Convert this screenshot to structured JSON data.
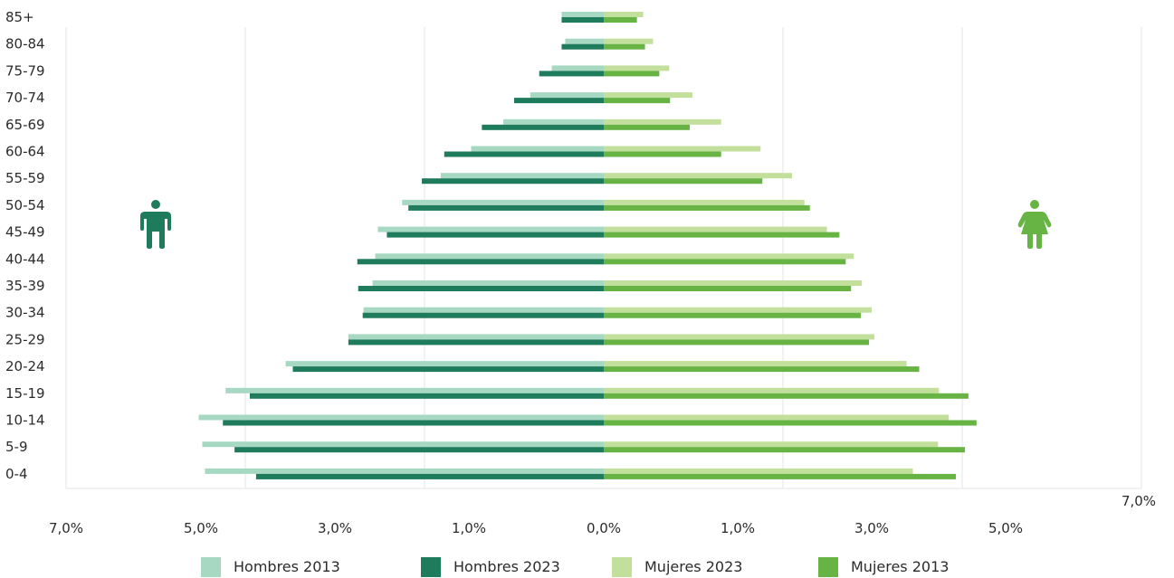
{
  "chart_data": {
    "type": "bar",
    "orientation": "horizontal-diverging",
    "title": "",
    "xlabel": "",
    "ylabel": "",
    "categories": [
      "85+",
      "80-84",
      "75-79",
      "70-74",
      "65-69",
      "60-64",
      "55-59",
      "50-54",
      "45-49",
      "40-44",
      "35-39",
      "30-34",
      "25-29",
      "20-24",
      "15-19",
      "10-14",
      "5-9",
      "0-4"
    ],
    "x_ticks": [
      "7,0%",
      "5,0%",
      "3,0%",
      "1,0%",
      "0,0%",
      "1,0%",
      "3,0%",
      "5,0%",
      "7,0%"
    ],
    "xlim": [
      -7.0,
      7.0
    ],
    "grid": true,
    "series": [
      {
        "name": "Hombres 2013",
        "side": "left",
        "color": "#a6d8c2",
        "values": [
          0.47,
          0.43,
          0.58,
          0.82,
          1.12,
          1.48,
          1.82,
          2.25,
          2.52,
          2.55,
          2.58,
          2.68,
          2.85,
          3.55,
          4.22,
          4.52,
          4.48,
          4.45
        ]
      },
      {
        "name": "Hombres 2023",
        "side": "left",
        "color": "#1e7b5b",
        "values": [
          0.47,
          0.47,
          0.72,
          1.0,
          1.36,
          1.78,
          2.03,
          2.18,
          2.42,
          2.75,
          2.74,
          2.69,
          2.85,
          3.47,
          3.95,
          4.25,
          4.12,
          3.88
        ]
      },
      {
        "name": "Mujeres 2023",
        "side": "right",
        "color": "#c2df9b",
        "values": [
          0.44,
          0.55,
          0.73,
          0.99,
          1.31,
          1.75,
          2.1,
          2.24,
          2.49,
          2.79,
          2.88,
          2.99,
          3.02,
          3.38,
          3.74,
          3.85,
          3.73,
          3.45
        ]
      },
      {
        "name": "Mujeres 2013",
        "side": "right",
        "color": "#67b444",
        "values": [
          0.37,
          0.46,
          0.62,
          0.74,
          0.96,
          1.31,
          1.77,
          2.3,
          2.63,
          2.7,
          2.76,
          2.87,
          2.96,
          3.52,
          4.07,
          4.16,
          4.03,
          3.93
        ]
      }
    ],
    "legend": "bottom"
  },
  "icons": {
    "left": "man-icon",
    "right": "woman-icon"
  },
  "colors": {
    "man_icon": "#1e7b5b",
    "woman_icon": "#67b444",
    "grid": "#e6e6e6"
  }
}
